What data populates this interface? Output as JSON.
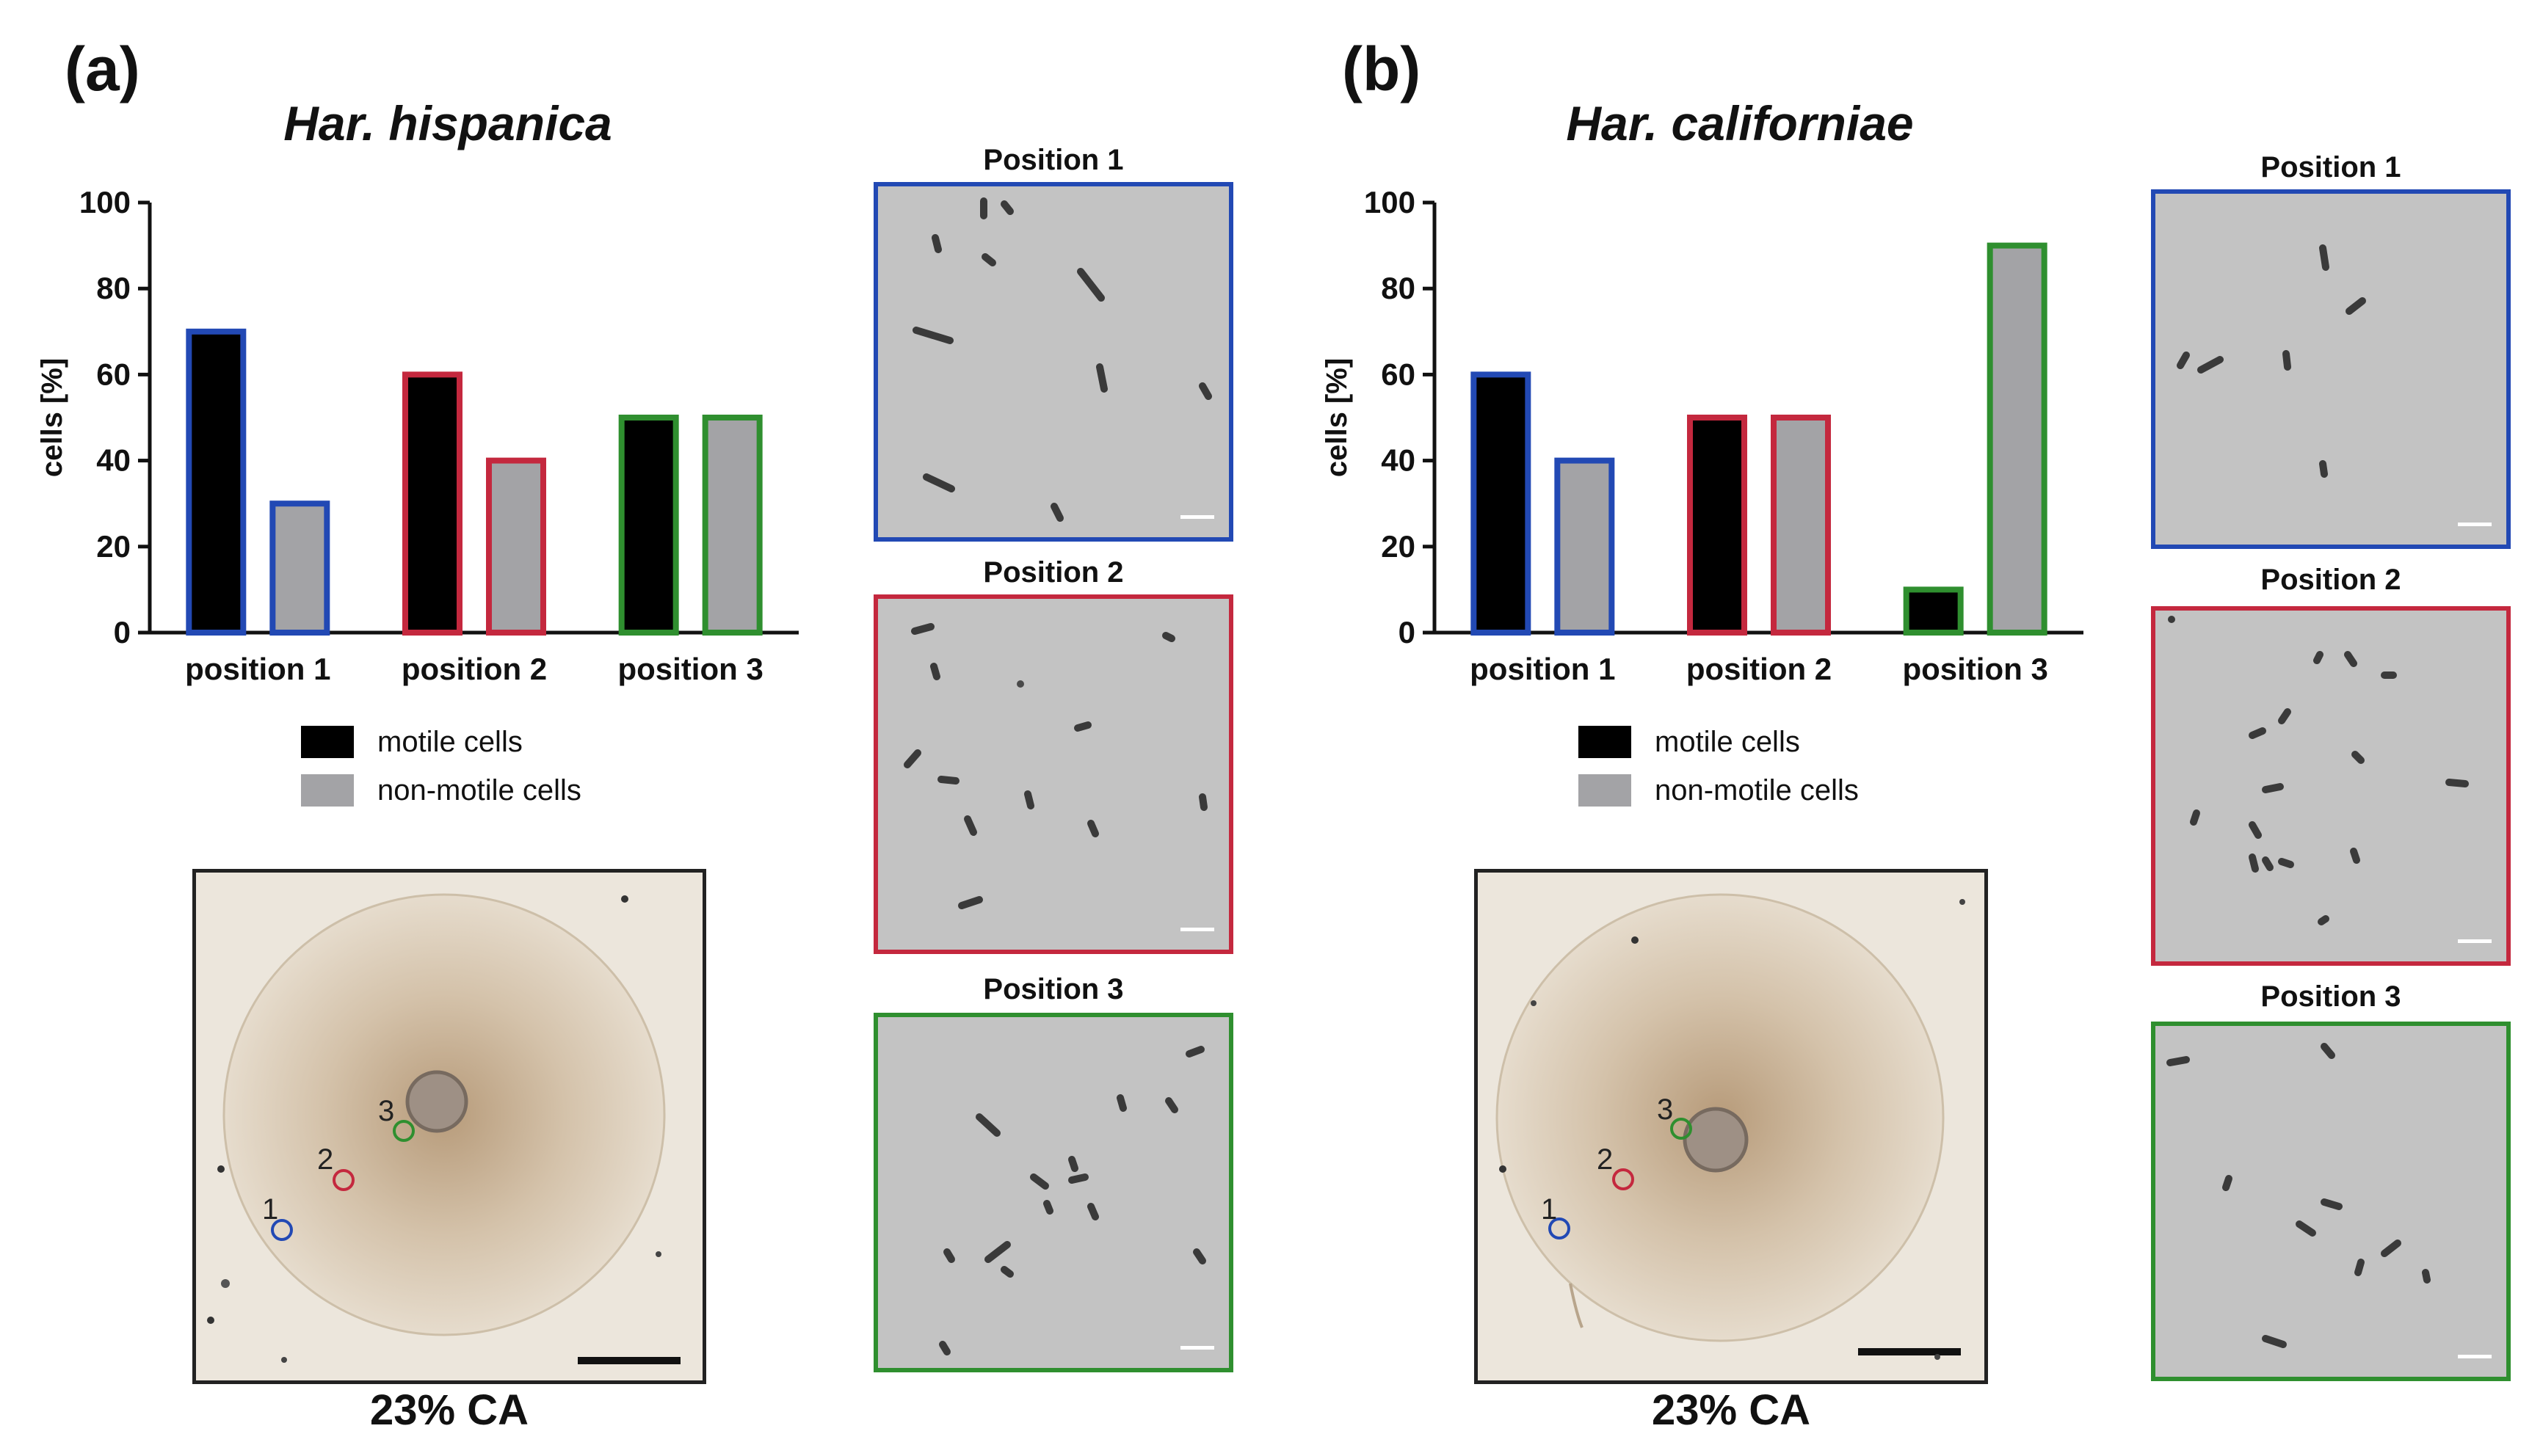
{
  "panels": [
    {
      "letter": "(a)",
      "species": "Har. hispanica",
      "plate_caption": "23% CA",
      "position_titles": [
        "Position 1",
        "Position 2",
        "Position 3"
      ],
      "plate_markers": [
        "1",
        "2",
        "3"
      ]
    },
    {
      "letter": "(b)",
      "species": "Har. californiae",
      "plate_caption": "23% CA",
      "position_titles": [
        "Position 1",
        "Position 2",
        "Position 3"
      ],
      "plate_markers": [
        "1",
        "2",
        "3"
      ]
    }
  ],
  "colors": {
    "motile": "#000000",
    "non_motile": "#a3a3a6",
    "position_1": "#2249b4",
    "position_2": "#c4283e",
    "position_3": "#2f8f2f"
  },
  "chart_data": [
    {
      "type": "bar",
      "categories": [
        "position 1",
        "position 2",
        "position 3"
      ],
      "series": [
        {
          "name": "motile cells",
          "values": [
            70,
            60,
            50
          ]
        },
        {
          "name": "non-motile cells",
          "values": [
            30,
            40,
            50
          ]
        }
      ],
      "ylabel": "cells [%]",
      "ylim": [
        0,
        100
      ],
      "yticks": [
        0,
        20,
        40,
        60,
        80,
        100
      ],
      "legend": [
        "motile cells",
        "non-motile cells"
      ],
      "legend_placement": "below"
    },
    {
      "type": "bar",
      "categories": [
        "position 1",
        "position 2",
        "position 3"
      ],
      "series": [
        {
          "name": "motile cells",
          "values": [
            60,
            50,
            10
          ]
        },
        {
          "name": "non-motile cells",
          "values": [
            40,
            50,
            90
          ]
        }
      ],
      "ylabel": "cells [%]",
      "ylim": [
        0,
        100
      ],
      "yticks": [
        0,
        20,
        40,
        60,
        80,
        100
      ],
      "legend": [
        "motile cells",
        "non-motile cells"
      ],
      "legend_placement": "below"
    }
  ]
}
